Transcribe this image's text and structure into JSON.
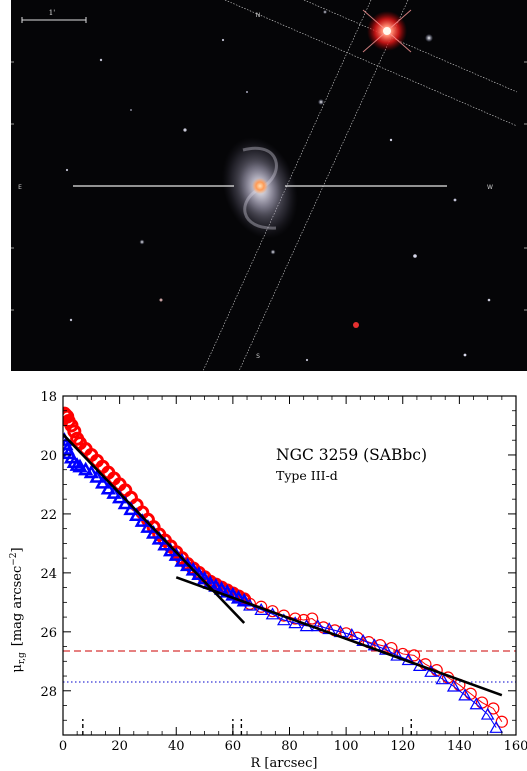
{
  "image_panel": {
    "scale_bar_label": "1'",
    "compass": {
      "north": "N",
      "south": "S",
      "east": "E",
      "west": "W"
    },
    "colors": {
      "background": "#050507",
      "reticle_lines": "#e6e6e6",
      "bright_star": "#ff3030",
      "galaxy_core": "#ff9a55",
      "galaxy_disk": "#c9c6d8"
    }
  },
  "chart_data": {
    "type": "scatter",
    "annotation_title": "NGC 3259 (SABbc)",
    "annotation_subtitle": "Type III-d",
    "xlabel": "R [arcsec]",
    "ylabel": "μr,g [mag arcsec−2]",
    "ylabel_parts": {
      "mu": "μ",
      "subscript": "r,g",
      "unit": "[mag arcsec",
      "exponent": "−2",
      "close": "]"
    },
    "xlim": [
      0,
      160
    ],
    "ylim": [
      29.5,
      18
    ],
    "y_inverted": true,
    "x_ticks": [
      0,
      20,
      40,
      60,
      80,
      100,
      120,
      140,
      160
    ],
    "x_tick_labels": [
      "0",
      "20",
      "40",
      "60",
      "80",
      "100",
      "120",
      "140",
      "160"
    ],
    "y_ticks": [
      18,
      20,
      22,
      24,
      26,
      28
    ],
    "y_tick_labels": [
      "18",
      "20",
      "22",
      "24",
      "26",
      "28"
    ],
    "grid": false,
    "legend": "none",
    "series": [
      {
        "band": "r",
        "color": "#ff0000",
        "marker": "circle",
        "points_dense": [
          [
            0.5,
            18.6
          ],
          [
            1,
            18.65
          ],
          [
            1.5,
            18.7
          ],
          [
            2,
            18.85
          ],
          [
            3,
            19.0
          ],
          [
            4,
            19.2
          ],
          [
            5,
            19.45
          ],
          [
            6,
            19.6
          ],
          [
            8,
            19.8
          ],
          [
            10,
            20.0
          ],
          [
            12,
            20.2
          ],
          [
            14,
            20.4
          ],
          [
            16,
            20.6
          ],
          [
            18,
            20.8
          ],
          [
            20,
            21.0
          ],
          [
            22,
            21.2
          ],
          [
            24,
            21.45
          ],
          [
            26,
            21.7
          ],
          [
            28,
            21.95
          ],
          [
            30,
            22.2
          ],
          [
            32,
            22.45
          ],
          [
            34,
            22.7
          ],
          [
            36,
            22.9
          ],
          [
            38,
            23.1
          ],
          [
            40,
            23.3
          ],
          [
            42,
            23.5
          ],
          [
            44,
            23.7
          ],
          [
            46,
            23.85
          ],
          [
            48,
            24.0
          ],
          [
            50,
            24.15
          ],
          [
            52,
            24.3
          ],
          [
            54,
            24.4
          ],
          [
            56,
            24.5
          ],
          [
            58,
            24.6
          ],
          [
            60,
            24.7
          ],
          [
            62,
            24.8
          ],
          [
            64,
            24.9
          ]
        ],
        "points_sparse": [
          [
            66,
            25.05
          ],
          [
            70,
            25.15
          ],
          [
            74,
            25.3
          ],
          [
            78,
            25.45
          ],
          [
            82,
            25.55
          ],
          [
            85,
            25.6
          ],
          [
            88,
            25.55
          ],
          [
            92,
            25.85
          ],
          [
            96,
            25.95
          ],
          [
            100,
            26.05
          ],
          [
            104,
            26.2
          ],
          [
            108,
            26.35
          ],
          [
            112,
            26.45
          ],
          [
            116,
            26.55
          ],
          [
            120,
            26.75
          ],
          [
            124,
            26.8
          ],
          [
            128,
            27.1
          ],
          [
            132,
            27.3
          ],
          [
            136,
            27.55
          ],
          [
            140,
            27.8
          ],
          [
            144,
            28.1
          ],
          [
            148,
            28.4
          ],
          [
            152,
            28.6
          ],
          [
            155,
            29.05
          ]
        ]
      },
      {
        "band": "g",
        "color": "#0000ff",
        "marker": "triangle",
        "points_dense": [
          [
            0.5,
            19.5
          ],
          [
            1,
            19.65
          ],
          [
            1.5,
            19.8
          ],
          [
            2,
            19.95
          ],
          [
            3,
            20.1
          ],
          [
            4,
            20.25
          ],
          [
            5,
            20.35
          ],
          [
            6,
            20.4
          ],
          [
            8,
            20.5
          ],
          [
            10,
            20.6
          ],
          [
            12,
            20.75
          ],
          [
            14,
            20.95
          ],
          [
            16,
            21.15
          ],
          [
            18,
            21.3
          ],
          [
            20,
            21.45
          ],
          [
            22,
            21.65
          ],
          [
            24,
            21.85
          ],
          [
            26,
            22.05
          ],
          [
            28,
            22.25
          ],
          [
            30,
            22.45
          ],
          [
            32,
            22.65
          ],
          [
            34,
            22.85
          ],
          [
            36,
            23.05
          ],
          [
            38,
            23.25
          ],
          [
            40,
            23.4
          ],
          [
            42,
            23.6
          ],
          [
            44,
            23.75
          ],
          [
            46,
            23.9
          ],
          [
            48,
            24.05
          ],
          [
            50,
            24.2
          ],
          [
            52,
            24.35
          ],
          [
            54,
            24.45
          ],
          [
            56,
            24.55
          ],
          [
            58,
            24.65
          ],
          [
            60,
            24.75
          ],
          [
            62,
            24.85
          ],
          [
            64,
            24.95
          ]
        ],
        "points_sparse": [
          [
            66,
            25.1
          ],
          [
            70,
            25.25
          ],
          [
            74,
            25.4
          ],
          [
            78,
            25.6
          ],
          [
            82,
            25.7
          ],
          [
            86,
            25.8
          ],
          [
            90,
            25.8
          ],
          [
            94,
            25.9
          ],
          [
            98,
            26.0
          ],
          [
            102,
            26.1
          ],
          [
            106,
            26.3
          ],
          [
            110,
            26.45
          ],
          [
            114,
            26.6
          ],
          [
            118,
            26.8
          ],
          [
            122,
            26.95
          ],
          [
            126,
            27.15
          ],
          [
            130,
            27.35
          ],
          [
            134,
            27.6
          ],
          [
            138,
            27.85
          ],
          [
            142,
            28.15
          ],
          [
            146,
            28.45
          ],
          [
            150,
            28.8
          ],
          [
            153,
            29.25
          ]
        ]
      }
    ],
    "fits": [
      {
        "name": "inner",
        "color": "#000000",
        "x": [
          0,
          64
        ],
        "y": [
          19.3,
          25.7
        ]
      },
      {
        "name": "outer",
        "color": "#000000",
        "x": [
          40,
          155
        ],
        "y": [
          24.15,
          28.15
        ]
      }
    ],
    "hlines": [
      {
        "y": 26.65,
        "style": "dashed",
        "color": "#cc0000"
      },
      {
        "y": 27.7,
        "style": "dotted",
        "color": "#0000cc"
      }
    ],
    "break_markers_x": [
      7,
      60,
      63,
      123
    ]
  }
}
